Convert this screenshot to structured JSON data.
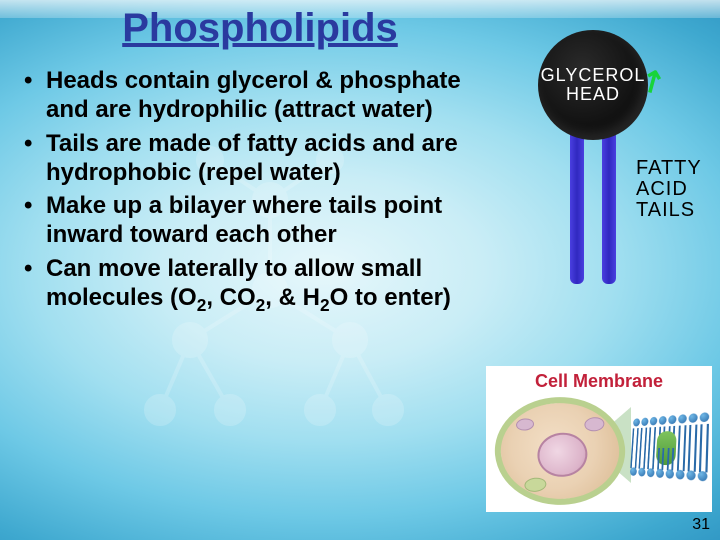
{
  "title": "Phospholipids",
  "bullets": [
    "Heads contain glycerol & phosphate and are hydrophilic (attract water)",
    "Tails are made of fatty acids and are hydrophobic (repel water)",
    "Make up a bilayer where tails point inward toward each other",
    "Can move laterally to allow small molecules (O<sub>2</sub>, CO<sub>2</sub>, & H<sub>2</sub>O to enter)"
  ],
  "diagram": {
    "head_line1": "GLYCEROL",
    "head_line2": "HEAD",
    "tails_line1": "FATTY",
    "tails_line2": "ACID",
    "tails_line3": "TAILS",
    "head_color": "#111111",
    "tail_color": "#3a32d0"
  },
  "cell_panel": {
    "title": "Cell Membrane"
  },
  "arrows": {
    "up": "↗",
    "down": "↙"
  },
  "page_number": "31",
  "colors": {
    "title": "#2a3a9f",
    "arrow": "#17d439",
    "cell_title": "#c2213a"
  }
}
